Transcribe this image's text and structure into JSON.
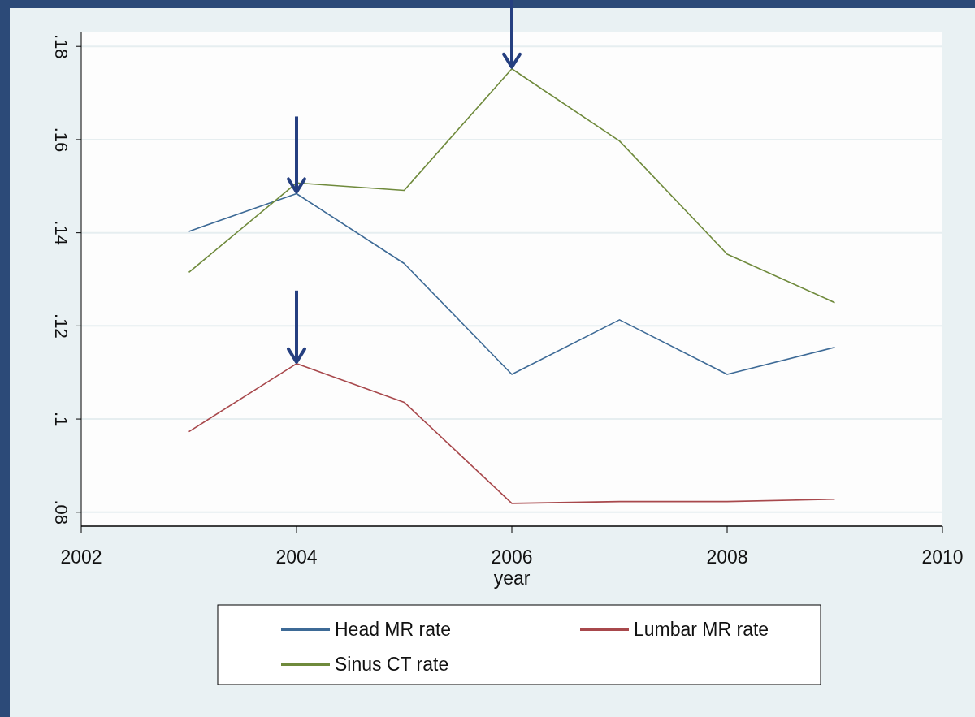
{
  "chart_data": {
    "type": "line",
    "xlabel": "year",
    "x": [
      2003,
      2004,
      2005,
      2006,
      2007,
      2008,
      2009
    ],
    "xlim": [
      2002,
      2010
    ],
    "xticks": [
      2002,
      2004,
      2006,
      2008,
      2010
    ],
    "ylim": [
      0.077,
      0.183
    ],
    "yticks": [
      {
        "value": 0.08,
        "label": ".08"
      },
      {
        "value": 0.1,
        "label": ".1"
      },
      {
        "value": 0.12,
        "label": ".12"
      },
      {
        "value": 0.14,
        "label": ".14"
      },
      {
        "value": 0.16,
        "label": ".16"
      },
      {
        "value": 0.18,
        "label": ".18"
      }
    ],
    "grid": "y",
    "legend": "bottom",
    "line_style": "solid",
    "marker": "none",
    "series": [
      {
        "name": "Head MR rate",
        "color": "#3d6a96",
        "values": [
          0.1403,
          0.1484,
          0.1334,
          0.1096,
          0.1213,
          0.1096,
          0.1154
        ]
      },
      {
        "name": "Lumbar MR rate",
        "color": "#a8484c",
        "values": [
          0.0973,
          0.1119,
          0.1036,
          0.0819,
          0.0823,
          0.0823,
          0.0828
        ]
      },
      {
        "name": "Sinus CT rate",
        "color": "#6f8a3c",
        "values": [
          0.1315,
          0.1507,
          0.1491,
          0.1752,
          0.1597,
          0.1354,
          0.125
        ]
      }
    ]
  }
}
